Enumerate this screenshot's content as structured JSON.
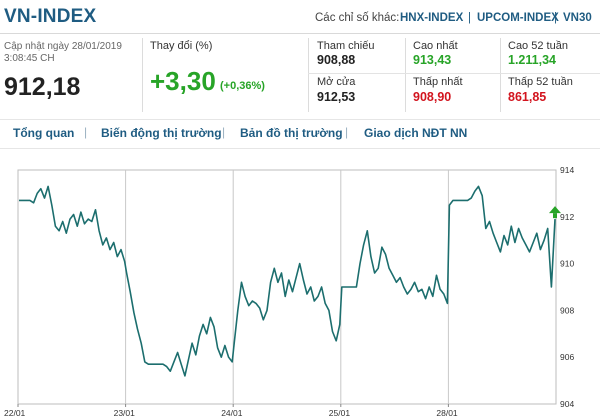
{
  "header": {
    "title": "VN-INDEX",
    "other_label": "Các chỉ số khác:",
    "other_indices": [
      "HNX-INDEX",
      "UPCOM-INDEX",
      "VN30"
    ],
    "separator": "|"
  },
  "summary": {
    "update_label": "Cập nhật ngày 28/01/2019",
    "update_time": "3:08:45 CH",
    "index_value": "912,18",
    "change_label": "Thay đổi (%)",
    "change_value": "+3,30",
    "change_pct": "(+0,36%)"
  },
  "stats": {
    "ref_label": "Tham chiếu",
    "ref_value": "908,88",
    "high_label": "Cao nhất",
    "high_value": "913,43",
    "high52_label": "Cao 52 tuần",
    "high52_value": "1.211,34",
    "open_label": "Mở cửa",
    "open_value": "912,53",
    "low_label": "Thấp nhất",
    "low_value": "908,90",
    "low52_label": "Thấp 52 tuần",
    "low52_value": "861,85"
  },
  "tabs": [
    "Tổng quan",
    "Biến động thị trường",
    "Bản đồ thị trường",
    "Giao dịch NĐT NN"
  ],
  "colors": {
    "brand": "#1f5c82",
    "up": "#27a427",
    "down": "#d2141e",
    "line": "#1c6e6e"
  },
  "chart_data": {
    "type": "line",
    "x_ticks": [
      "22/01",
      "23/01",
      "24/01",
      "25/01",
      "28/01"
    ],
    "y_ticks": [
      "904",
      "906",
      "908",
      "910",
      "912",
      "914"
    ],
    "ylim": [
      904,
      914
    ],
    "grid": "vertical at each day",
    "marker": "green up arrow at last point",
    "series": [
      {
        "days": [
          {
            "date": "22/01",
            "points": [
              912.7,
              912.7,
              912.7,
              912.7,
              912.6,
              913.0,
              913.2,
              912.8,
              913.3,
              912.5,
              911.6,
              911.4,
              911.8,
              911.3,
              911.9,
              912.1,
              911.6,
              912.2,
              911.7,
              911.9,
              911.8,
              912.3,
              911.4,
              910.8,
              911.1,
              910.6,
              910.9,
              910.3,
              910.6,
              910.1
            ]
          },
          {
            "date": "23/01",
            "points": [
              909.6,
              908.8,
              907.9,
              907.2,
              906.6,
              905.8,
              905.7,
              905.7,
              905.7,
              905.7,
              905.7,
              905.6,
              905.4,
              905.8,
              906.2,
              905.7,
              905.2,
              905.9,
              906.6,
              906.1,
              906.9,
              907.4,
              907.0,
              907.7,
              907.3,
              906.4,
              906.0,
              906.5,
              906.0,
              905.8
            ]
          },
          {
            "date": "24/01",
            "points": [
              906.6,
              908.0,
              909.2,
              908.6,
              908.2,
              908.4,
              908.3,
              908.1,
              907.6,
              908.0,
              909.2,
              909.8,
              909.2,
              909.6,
              908.6,
              909.3,
              908.8,
              909.4,
              910.0,
              909.3,
              908.7,
              909.0,
              908.4,
              908.6,
              909.0,
              908.3,
              908.0,
              907.1,
              906.7,
              907.4
            ]
          },
          {
            "date": "25/01",
            "points": [
              909.0,
              909.0,
              909.0,
              909.0,
              909.0,
              910.0,
              910.8,
              911.4,
              910.3,
              909.6,
              909.8,
              910.7,
              910.4,
              909.8,
              909.5,
              909.2,
              909.4,
              909.0,
              908.7,
              908.9,
              909.2,
              908.8,
              908.9,
              908.5,
              909.0,
              908.6,
              909.5,
              908.9,
              908.7,
              908.3
            ]
          },
          {
            "date": "28/01",
            "points": [
              912.5,
              912.7,
              912.7,
              912.7,
              912.7,
              912.7,
              912.8,
              913.1,
              913.3,
              912.9,
              911.5,
              911.8,
              911.3,
              910.9,
              910.5,
              911.2,
              910.8,
              911.6,
              910.9,
              911.5,
              911.1,
              910.8,
              910.5,
              910.9,
              911.3,
              910.6,
              911.0,
              911.5,
              909.0,
              911.9
            ]
          }
        ]
      }
    ]
  }
}
